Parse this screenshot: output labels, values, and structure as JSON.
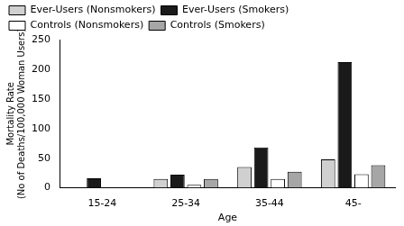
{
  "chart_data": {
    "type": "bar",
    "x_label": "Age",
    "y_label": [
      "Mortality Rate",
      "(No of Deaths/100,000 Woman Users)"
    ],
    "categories": [
      "15-24",
      "25-34",
      "35-44",
      "45-"
    ],
    "series": [
      {
        "name": "Ever-Users (Nonsmokers)",
        "color": "#d0d0d0",
        "values": [
          0,
          15,
          35,
          48
        ]
      },
      {
        "name": "Ever-Users (Smokers)",
        "color": "#1a1a1a",
        "values": [
          16,
          22,
          68,
          212
        ]
      },
      {
        "name": "Controls (Nonsmokers)",
        "color": "#ffffff",
        "values": [
          0,
          5,
          15,
          23
        ]
      },
      {
        "name": "Controls (Smokers)",
        "color": "#a6a6a6",
        "values": [
          0,
          15,
          27,
          38
        ]
      }
    ],
    "ylim": [
      0,
      250
    ],
    "yticks": [
      0,
      50,
      100,
      150,
      200,
      250
    ],
    "grid": false,
    "legend": "top-left"
  }
}
